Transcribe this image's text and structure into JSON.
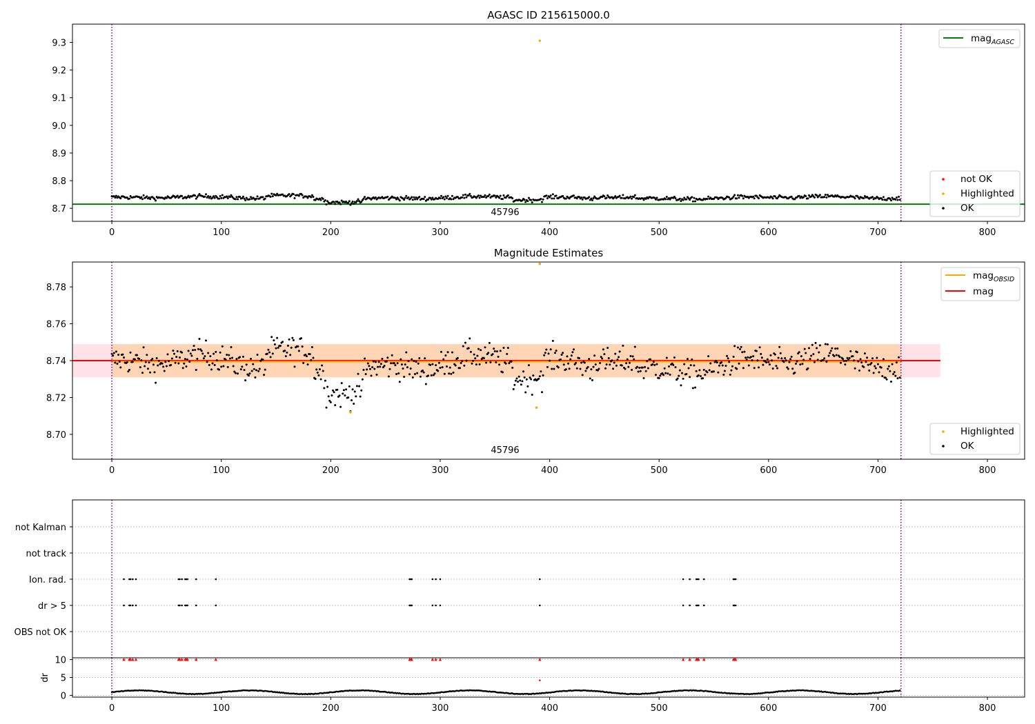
{
  "chart_data": [
    {
      "type": "scatter",
      "title": "AGASC ID 215615000.0",
      "xlabel": "",
      "ylabel": "",
      "xlim": [
        -36,
        834
      ],
      "ylim": [
        8.653,
        9.366
      ],
      "xticks": [
        0,
        100,
        200,
        300,
        400,
        500,
        600,
        700,
        800
      ],
      "xtick_labels": [
        "0",
        "100",
        "200",
        "300",
        "400",
        "500",
        "600",
        "700",
        "800"
      ],
      "yticks": [
        8.7,
        8.8,
        8.9,
        9.0,
        9.1,
        9.2,
        9.3
      ],
      "ytick_labels": [
        "8.7",
        "8.8",
        "8.9",
        "9.0",
        "9.1",
        "9.2",
        "9.3"
      ],
      "grid": false,
      "obs_boundaries": [
        0,
        721
      ],
      "obs_label": "45796",
      "obs_label_x": 360,
      "mag_agasc": 8.715,
      "series": [
        {
          "name": "not OK",
          "color": "#ff0000",
          "x": [],
          "y": []
        },
        {
          "name": "Highlighted",
          "color": "#ffa500",
          "x": [
            391
          ],
          "y": [
            9.306
          ]
        },
        {
          "name": "OK",
          "color": "#000000",
          "profile": "magnitude_stars",
          "count": 721,
          "x_range": [
            0,
            721
          ]
        }
      ],
      "lines": [
        {
          "name": "mag_AGASC",
          "color": "#008000",
          "y": 8.715
        }
      ],
      "legends": [
        {
          "position": "upper right",
          "entries": [
            {
              "label": "mag",
              "sub": "AGASC",
              "kind": "line",
              "color": "#008000"
            }
          ]
        },
        {
          "position": "lower right",
          "entries": [
            {
              "label": "not OK",
              "kind": "dot",
              "color": "#ff0000"
            },
            {
              "label": "Highlighted",
              "kind": "dot",
              "color": "#ffa500"
            },
            {
              "label": "OK",
              "kind": "dot",
              "color": "#000000"
            }
          ]
        }
      ]
    },
    {
      "type": "scatter",
      "title": "Magnitude Estimates",
      "xlabel": "",
      "ylabel": "",
      "xlim": [
        -36,
        834
      ],
      "ylim": [
        8.6865,
        8.7935
      ],
      "xticks": [
        0,
        100,
        200,
        300,
        400,
        500,
        600,
        700,
        800
      ],
      "xtick_labels": [
        "0",
        "100",
        "200",
        "300",
        "400",
        "500",
        "600",
        "700",
        "800"
      ],
      "yticks": [
        8.7,
        8.72,
        8.74,
        8.76,
        8.78
      ],
      "ytick_labels": [
        "8.70",
        "8.72",
        "8.74",
        "8.76",
        "8.78"
      ],
      "grid": false,
      "obs_boundaries": [
        0,
        721
      ],
      "obs_label": "45796",
      "obs_label_x": 360,
      "mag": 8.74,
      "mag_obsid": 8.7395,
      "bands": [
        {
          "color": "#ffc0cb",
          "opacity": 0.45,
          "y": [
            8.731,
            8.749
          ],
          "x": [
            -36,
            757
          ]
        },
        {
          "color": "#ffa500",
          "opacity": 0.22,
          "y": [
            8.731,
            8.749
          ],
          "x": [
            0,
            721
          ]
        }
      ],
      "series": [
        {
          "name": "Highlighted",
          "color": "#ffa500",
          "x": [
            218,
            388,
            391
          ],
          "y": [
            8.712,
            8.7145,
            8.7925
          ]
        },
        {
          "name": "OK",
          "color": "#000000",
          "profile": "magnitude_estimates",
          "count": 721,
          "x_range": [
            0,
            721
          ]
        }
      ],
      "lines": [
        {
          "name": "mag_OBSID",
          "color": "#ffa500",
          "y": 8.7395
        },
        {
          "name": "mag",
          "color": "#ff0000",
          "y": 8.74
        }
      ],
      "legends": [
        {
          "position": "upper right",
          "entries": [
            {
              "label": "mag",
              "sub": "OBSID",
              "kind": "line",
              "color": "#ffa500"
            },
            {
              "label": "mag",
              "kind": "line",
              "color": "#ff0000"
            }
          ]
        },
        {
          "position": "lower right",
          "entries": [
            {
              "label": "Highlighted",
              "kind": "dot",
              "color": "#ffa500"
            },
            {
              "label": "OK",
              "kind": "dot",
              "color": "#000000"
            }
          ]
        }
      ]
    },
    {
      "type": "scatter",
      "title": "",
      "xlabel": "",
      "ylabel": "",
      "xlim": [
        -36,
        834
      ],
      "categories": [
        "not Kalman",
        "not track",
        "Ion. rad.",
        "dr > 5",
        "OBS not OK"
      ],
      "grid": true,
      "obs_boundaries": [
        0,
        721
      ],
      "flags": [
        {
          "category": "Ion. rad.",
          "x": [
            11,
            16,
            17,
            19,
            22,
            61,
            62,
            64,
            67,
            68,
            69,
            77,
            95,
            272,
            273,
            274,
            293,
            296,
            300,
            391,
            522,
            528,
            534,
            535,
            536,
            541,
            568,
            569,
            570
          ]
        },
        {
          "category": "dr > 5",
          "x": [
            11,
            16,
            17,
            19,
            22,
            61,
            62,
            64,
            67,
            68,
            69,
            77,
            95,
            272,
            273,
            274,
            293,
            296,
            300,
            391,
            522,
            528,
            534,
            535,
            536,
            541,
            568,
            569,
            570
          ]
        }
      ]
    },
    {
      "type": "scatter",
      "title": "",
      "xlabel": "",
      "ylabel": "dr",
      "xlim": [
        -36,
        834
      ],
      "ylim": [
        -0.5,
        10.5
      ],
      "yticks": [
        0,
        5,
        10
      ],
      "ytick_labels": [
        "0",
        "5",
        "10"
      ],
      "xticks": [
        0,
        100,
        200,
        300,
        400,
        500,
        600,
        700,
        800
      ],
      "xtick_labels": [
        "0",
        "100",
        "200",
        "300",
        "400",
        "500",
        "600",
        "700",
        "800"
      ],
      "grid": true,
      "obs_boundaries": [
        0,
        721
      ],
      "clipped_at": 10,
      "clipped_x": [
        11,
        16,
        17,
        19,
        22,
        61,
        62,
        64,
        67,
        68,
        69,
        77,
        95,
        272,
        273,
        274,
        293,
        296,
        300,
        391,
        522,
        528,
        534,
        535,
        536,
        541,
        568,
        569,
        570
      ],
      "extra_points": [
        {
          "x": 391,
          "y": 4.2,
          "color": "#ff0000"
        }
      ],
      "series": [
        {
          "name": "dr",
          "color": "#000000",
          "profile": "dr_values",
          "count": 721,
          "x_range": [
            0,
            721
          ]
        }
      ]
    }
  ]
}
